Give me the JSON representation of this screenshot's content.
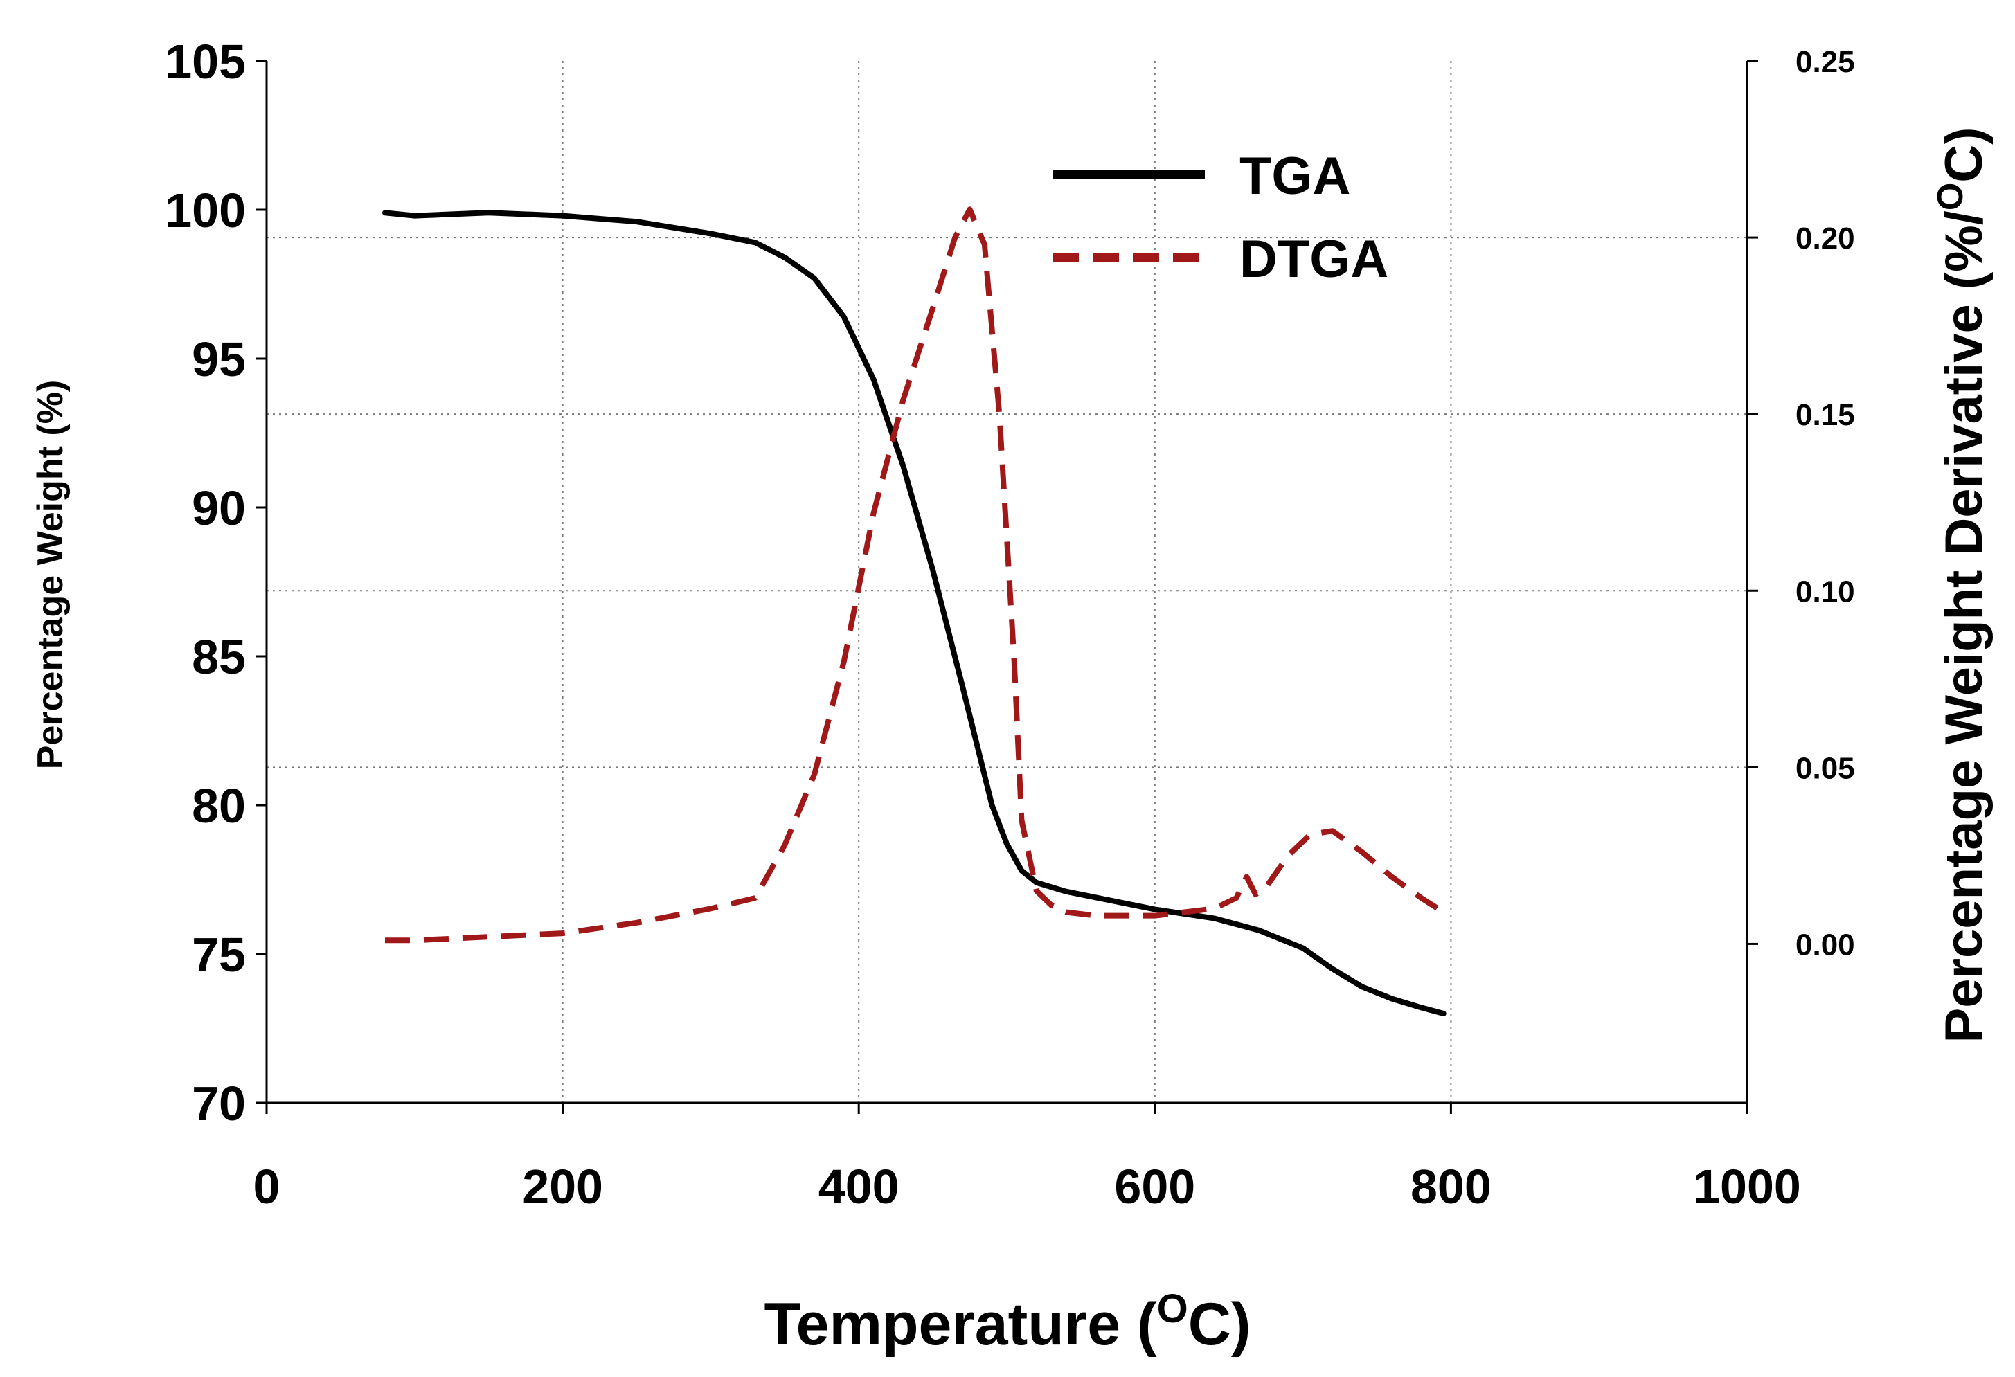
{
  "chart_data": {
    "type": "line",
    "title": "",
    "xlabel": "Temperature (",
    "xlabel_superscript": "O",
    "xlabel_suffix": "C)",
    "ylabel": "Percentage Weight (%)",
    "y2label": "Percentage Weight Derivative (%/",
    "y2label_superscript": "O",
    "y2label_suffix": "C)",
    "xlim": [
      0,
      1000
    ],
    "ylim": [
      70,
      105
    ],
    "y2lim": [
      -0.045,
      0.25
    ],
    "x_ticks": [
      "0",
      "200",
      "400",
      "600",
      "800",
      "1000"
    ],
    "x_tick_values": [
      0,
      200,
      400,
      600,
      800,
      1000
    ],
    "y_ticks": [
      "70",
      "75",
      "80",
      "85",
      "90",
      "95",
      "100",
      "105"
    ],
    "y_tick_values": [
      70,
      75,
      80,
      85,
      90,
      95,
      100,
      105
    ],
    "y2_ticks": [
      "0.00",
      "0.05",
      "0.10",
      "0.15",
      "0.20",
      "0.25"
    ],
    "y2_tick_values": [
      0.0,
      0.05,
      0.1,
      0.15,
      0.2,
      0.25
    ],
    "grid": true,
    "legend_position": "top-center",
    "series": [
      {
        "name": "TGA",
        "axis": "left",
        "color": "#000000",
        "style": "solid",
        "x": [
          80,
          100,
          150,
          200,
          250,
          300,
          330,
          350,
          370,
          390,
          410,
          430,
          450,
          470,
          490,
          500,
          510,
          520,
          540,
          560,
          600,
          640,
          670,
          700,
          720,
          740,
          760,
          780,
          795
        ],
        "y": [
          99.9,
          99.8,
          99.9,
          99.8,
          99.6,
          99.2,
          98.9,
          98.4,
          97.7,
          96.4,
          94.3,
          91.4,
          87.9,
          84.0,
          80.0,
          78.7,
          77.8,
          77.4,
          77.1,
          76.9,
          76.5,
          76.2,
          75.8,
          75.2,
          74.5,
          73.9,
          73.5,
          73.2,
          73.0
        ]
      },
      {
        "name": "DTGA",
        "axis": "right",
        "color": "#a01818",
        "style": "dashed",
        "x": [
          80,
          100,
          150,
          200,
          250,
          300,
          330,
          350,
          370,
          390,
          410,
          430,
          450,
          465,
          475,
          485,
          495,
          505,
          510,
          520,
          530,
          540,
          560,
          600,
          640,
          655,
          662,
          668,
          675,
          690,
          705,
          720,
          740,
          760,
          780,
          795
        ],
        "y": [
          0.001,
          0.001,
          0.002,
          0.003,
          0.006,
          0.01,
          0.013,
          0.028,
          0.048,
          0.08,
          0.122,
          0.154,
          0.18,
          0.2,
          0.208,
          0.198,
          0.15,
          0.08,
          0.035,
          0.015,
          0.011,
          0.009,
          0.008,
          0.008,
          0.01,
          0.013,
          0.019,
          0.014,
          0.016,
          0.025,
          0.031,
          0.032,
          0.026,
          0.019,
          0.013,
          0.009
        ]
      }
    ]
  }
}
